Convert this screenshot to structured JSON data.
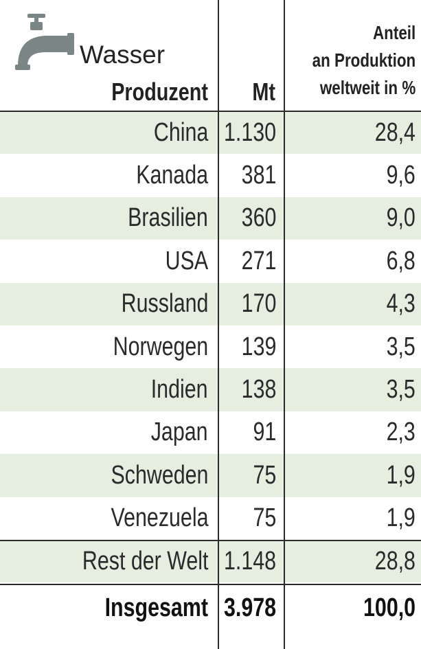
{
  "header": {
    "title": "Wasser",
    "col_producer": "Produzent",
    "col_mt": "Mt",
    "col_share_lines": [
      "Anteil",
      "an Produktion",
      "weltweit in %"
    ]
  },
  "rows": [
    {
      "name": "China",
      "mt": "1.130",
      "share": "28,4"
    },
    {
      "name": "Kanada",
      "mt": "381",
      "share": "9,6"
    },
    {
      "name": "Brasilien",
      "mt": "360",
      "share": "9,0"
    },
    {
      "name": "USA",
      "mt": "271",
      "share": "6,8"
    },
    {
      "name": "Russland",
      "mt": "170",
      "share": "4,3"
    },
    {
      "name": "Norwegen",
      "mt": "139",
      "share": "3,5"
    },
    {
      "name": "Indien",
      "mt": "138",
      "share": "3,5"
    },
    {
      "name": "Japan",
      "mt": "91",
      "share": "2,3"
    },
    {
      "name": "Schweden",
      "mt": "75",
      "share": "1,9"
    },
    {
      "name": "Venezuela",
      "mt": "75",
      "share": "1,9"
    },
    {
      "name": "Rest der Welt",
      "mt": "1.148",
      "share": "28,8"
    }
  ],
  "total": {
    "name": "Insgesamt",
    "mt": "3.978",
    "share": "100,0"
  },
  "colors": {
    "row_shade": "#e6eedf",
    "tap": "#7a8586",
    "rule": "#2a2a2a"
  },
  "icons": {
    "header_icon": "water-tap-icon"
  },
  "chart_data": {
    "type": "table",
    "columns": [
      "Produzent",
      "Mt",
      "Anteil an Produktion weltweit in %"
    ],
    "rows": [
      [
        "China",
        1130,
        28.4
      ],
      [
        "Kanada",
        381,
        9.6
      ],
      [
        "Brasilien",
        360,
        9.0
      ],
      [
        "USA",
        271,
        6.8
      ],
      [
        "Russland",
        170,
        4.3
      ],
      [
        "Norwegen",
        139,
        3.5
      ],
      [
        "Indien",
        138,
        3.5
      ],
      [
        "Japan",
        91,
        2.3
      ],
      [
        "Schweden",
        75,
        1.9
      ],
      [
        "Venezuela",
        75,
        1.9
      ],
      [
        "Rest der Welt",
        1148,
        28.8
      ]
    ],
    "total": [
      "Insgesamt",
      3978,
      100.0
    ]
  }
}
